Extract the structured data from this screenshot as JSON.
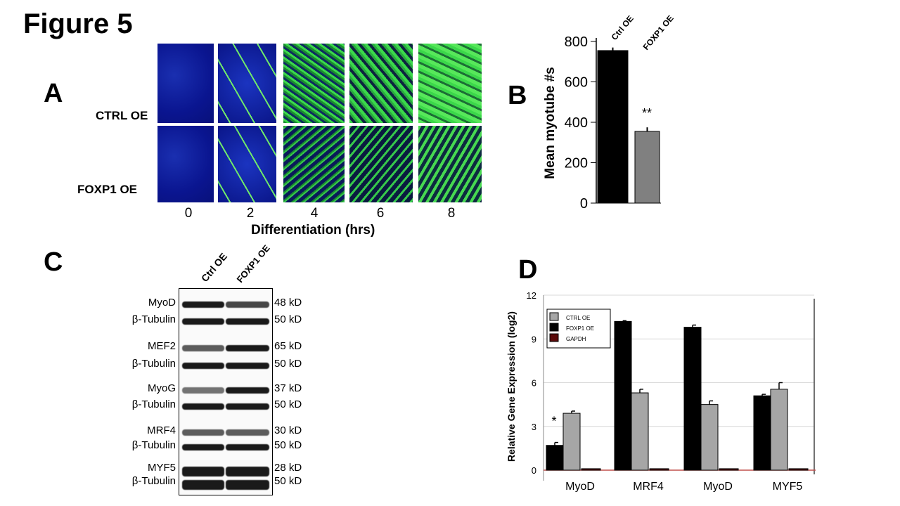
{
  "figure_title": "Figure 5",
  "panel_a": {
    "label": "A",
    "rows": [
      "CTRL OE",
      "FOXP1  OE"
    ],
    "timepoints": [
      "0",
      "2",
      "4",
      "6",
      "8"
    ],
    "xlabel": "Differentiation (hrs)"
  },
  "panel_c": {
    "label": "C",
    "lanes": [
      "Ctrl OE",
      "FOXP1 OE"
    ],
    "blots": [
      {
        "protein": "MyoD",
        "size": "48 kD"
      },
      {
        "protein": "β-Tubulin",
        "size": "50 kD"
      },
      {
        "protein": "MEF2",
        "size": "65 kD"
      },
      {
        "protein": "β-Tubulin",
        "size": "50 kD"
      },
      {
        "protein": "MyoG",
        "size": "37 kD"
      },
      {
        "protein": "β-Tubulin",
        "size": "50 kD"
      },
      {
        "protein": "MRF4",
        "size": "30 kD"
      },
      {
        "protein": "β-Tubulin",
        "size": "50 kD"
      },
      {
        "protein": "MYF5",
        "size": "28 kD"
      },
      {
        "protein": "β-Tubulin",
        "size": "50 kD"
      }
    ]
  },
  "chart_data": [
    {
      "panel": "B",
      "type": "bar",
      "ylabel": "Mean myotube #s",
      "categories": [
        "Ctrl OE",
        "FOXP1 OE"
      ],
      "values": [
        755,
        355
      ],
      "errors": [
        15,
        20
      ],
      "colors": [
        "#000000",
        "#808080"
      ],
      "ylim": [
        0,
        800
      ],
      "yticks": [
        "0",
        "200",
        "400",
        "600",
        "800"
      ],
      "annotations": [
        "**"
      ]
    },
    {
      "panel": "D",
      "type": "bar",
      "ylabel": "Relative Gene Expression (log2)",
      "categories": [
        "MyoD",
        "MRF4",
        "MyoD",
        "MYF5"
      ],
      "ylim": [
        0,
        12
      ],
      "yticks": [
        "0",
        "3",
        "6",
        "9",
        "12"
      ],
      "grid": true,
      "legend_position": "top-left",
      "series": [
        {
          "name": "FOXP1 OE",
          "color": "#000000",
          "values": [
            1.7,
            10.2,
            9.8,
            5.1
          ],
          "errors": [
            0.2,
            0.05,
            0.15,
            0.1
          ]
        },
        {
          "name": "CTRL OE",
          "color": "#a6a6a6",
          "values": [
            3.9,
            5.3,
            4.5,
            5.55
          ],
          "errors": [
            0.15,
            0.25,
            0.25,
            0.45
          ]
        },
        {
          "name": "GAPDH",
          "color": "#5a0a0a",
          "values": [
            0.1,
            0.1,
            0.1,
            0.1
          ]
        }
      ],
      "legend_order": [
        "CTRL OE",
        "FOXP1 OE",
        "GAPDH"
      ],
      "annotations": [
        "*"
      ]
    }
  ]
}
